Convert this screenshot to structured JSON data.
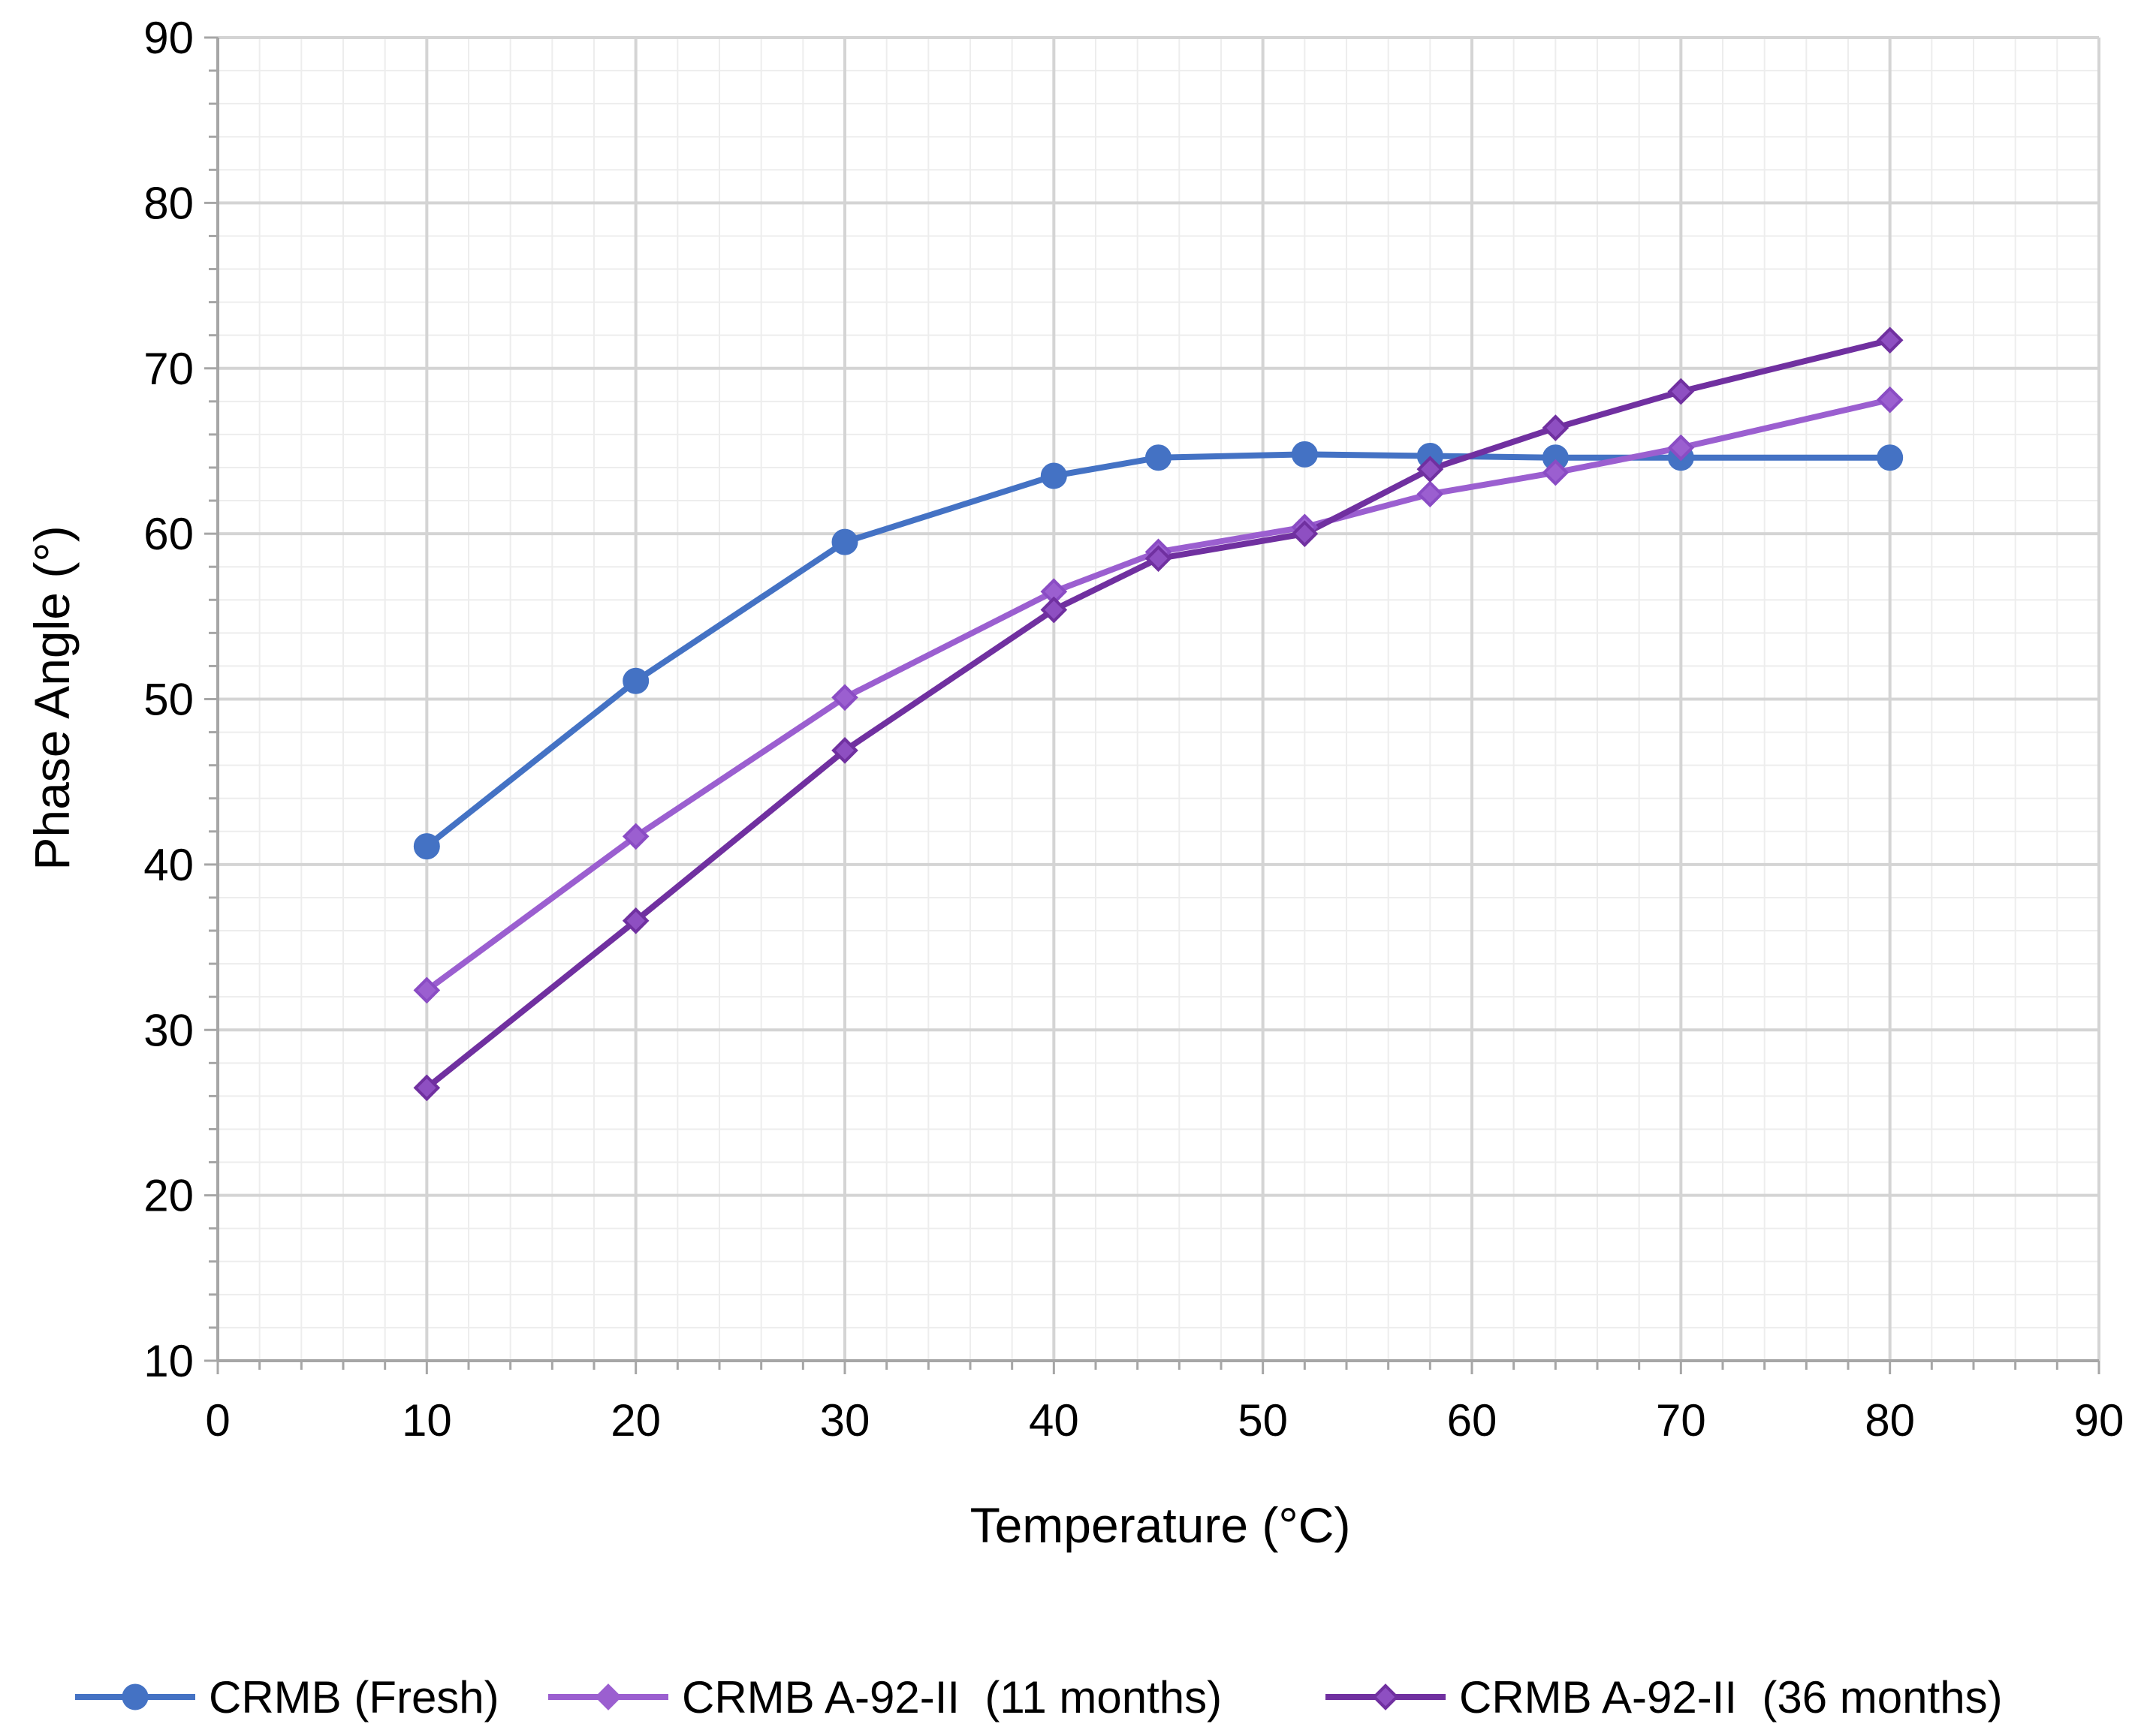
{
  "chart_data": {
    "type": "line",
    "title": "",
    "xlabel": "Temperature (°C)",
    "ylabel": "Phase Angle (°)",
    "xlim": [
      0,
      90
    ],
    "ylim": [
      10,
      90
    ],
    "x_major_step": 10,
    "y_major_step": 10,
    "x_minor_step": 2,
    "y_minor_step": 2,
    "grid": true,
    "legend_position": "bottom",
    "x_ticks": [
      "0",
      "10",
      "20",
      "30",
      "40",
      "50",
      "60",
      "70",
      "80",
      "90"
    ],
    "y_ticks": [
      "10",
      "20",
      "30",
      "40",
      "50",
      "60",
      "70",
      "80",
      "90"
    ],
    "series": [
      {
        "name": "CRMB (Fresh)",
        "color": "#4472C4",
        "marker": "circle",
        "x": [
          10,
          20,
          30,
          40,
          45,
          52,
          58,
          64,
          70,
          80
        ],
        "values": [
          41.1,
          51.1,
          59.5,
          63.5,
          64.6,
          64.8,
          64.7,
          64.6,
          64.6,
          64.6
        ]
      },
      {
        "name": "CRMB A-92-II  (11 months)",
        "color": "#9B5FD0",
        "marker": "diamond",
        "x": [
          10,
          20,
          30,
          40,
          45,
          52,
          58,
          64,
          70,
          80
        ],
        "values": [
          32.4,
          41.7,
          50.1,
          56.5,
          58.9,
          60.4,
          62.4,
          63.7,
          65.2,
          68.1
        ]
      },
      {
        "name": "CRMB A-92-II  (36 months)",
        "color": "#7030A0",
        "marker": "diamond",
        "x": [
          10,
          20,
          30,
          40,
          45,
          52,
          58,
          64,
          70,
          80
        ],
        "values": [
          26.5,
          36.6,
          46.9,
          55.4,
          58.5,
          60.0,
          63.9,
          66.4,
          68.6,
          71.7
        ]
      }
    ]
  }
}
